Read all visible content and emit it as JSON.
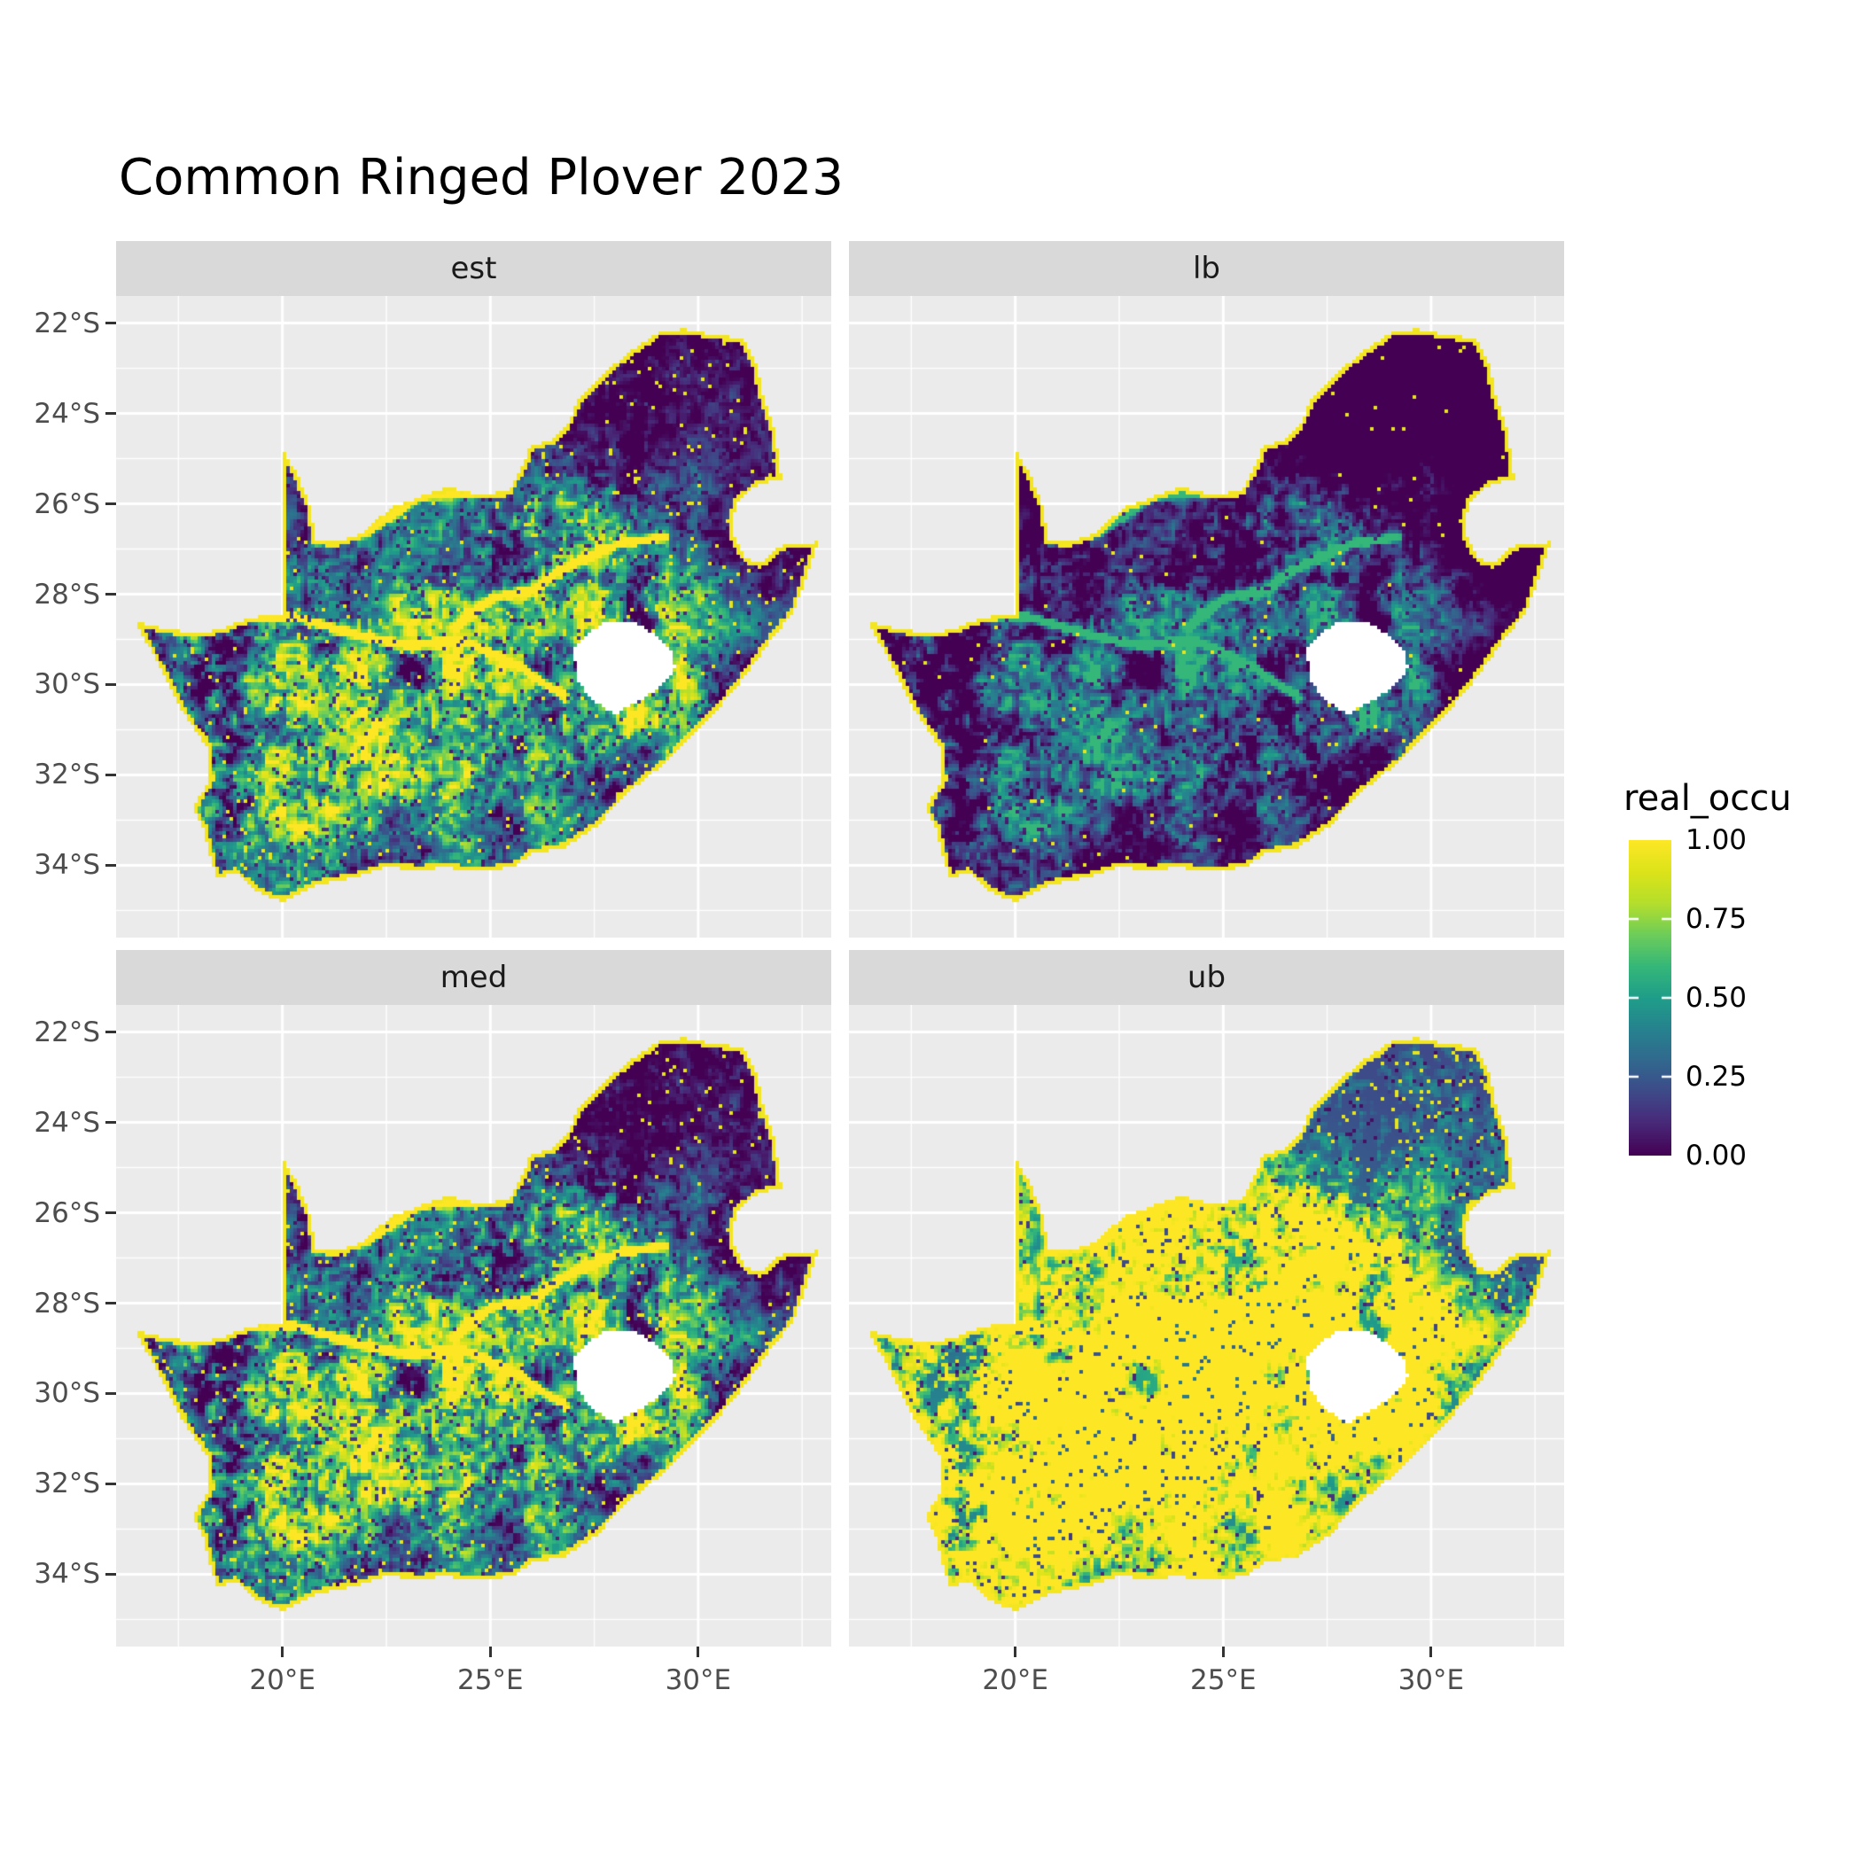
{
  "title": "Common Ringed Plover 2023",
  "facets": [
    {
      "label": "est"
    },
    {
      "label": "lb"
    },
    {
      "label": "med"
    },
    {
      "label": "ub"
    }
  ],
  "x_axis": {
    "ticks": [
      "20°E",
      "25°E",
      "30°E"
    ]
  },
  "y_axis": {
    "ticks": [
      "22°S",
      "24°S",
      "26°S",
      "28°S",
      "30°S",
      "32°S",
      "34°S"
    ]
  },
  "legend": {
    "title": "real_occu",
    "labels": [
      "1.00",
      "0.75",
      "0.50",
      "0.25",
      "0.00"
    ]
  },
  "colors": {
    "panel_background": "#EBEBEB",
    "strip_background": "#D9D9D9",
    "grid": "#FFFFFF",
    "axis_text": "#4D4D4D",
    "tick_mark": "#333333",
    "title_text": "#000000",
    "strip_text": "#1A1A1A",
    "na_fill": "#FFFFFF",
    "viridis": [
      "#440154",
      "#482878",
      "#3E4A89",
      "#31688E",
      "#26828E",
      "#1F9E89",
      "#35B779",
      "#6DCD59",
      "#B4DE2C",
      "#DCE319",
      "#FDE725"
    ]
  },
  "chart_data": {
    "type": "heatmap",
    "subtype": "faceted_raster_map",
    "title": "Common Ringed Plover 2023",
    "variable": "real_occu",
    "facets": [
      "est",
      "lb",
      "med",
      "ub"
    ],
    "colormap": "viridis",
    "value_range": [
      0,
      1
    ],
    "legend_breaks": [
      1.0,
      0.75,
      0.5,
      0.25,
      0.0
    ],
    "x_ticks_deg_east": [
      20,
      25,
      30
    ],
    "y_ticks_deg_south": [
      22,
      24,
      26,
      28,
      30,
      32,
      34
    ],
    "lon_range_east": [
      16.0,
      33.2
    ],
    "lat_range_south": [
      21.4,
      35.6
    ],
    "region": "South Africa pentad raster; Lesotho shown as a no-data hole; coastline rimmed with occupancy ~1",
    "facet_character": {
      "est": "moderate occupancy: bright green/yellow patches in central and western interior, yellow river lines and coastal rim, dark north and east",
      "lb": "lower bound: mostly near-zero (dark purple) with faint teal/green patches, yellow coastal rim",
      "med": "median: similar to est with slightly brighter speckled patches",
      "ub": "upper bound: widespread high occupancy (yellow) across southern and central interior, teal in far north-west, mixed dark/yellow north-east"
    },
    "outline_lonlat": [
      [
        16.45,
        -28.6
      ],
      [
        17.2,
        -28.77
      ],
      [
        18.0,
        -28.87
      ],
      [
        18.6,
        -28.75
      ],
      [
        19.2,
        -28.52
      ],
      [
        19.99,
        -28.43
      ],
      [
        19.99,
        -24.75
      ],
      [
        20.35,
        -25.35
      ],
      [
        20.65,
        -26.0
      ],
      [
        20.82,
        -26.82
      ],
      [
        21.3,
        -26.85
      ],
      [
        21.9,
        -26.67
      ],
      [
        22.6,
        -26.1
      ],
      [
        23.3,
        -25.85
      ],
      [
        24.0,
        -25.63
      ],
      [
        24.75,
        -25.8
      ],
      [
        25.45,
        -25.72
      ],
      [
        25.85,
        -25.0
      ],
      [
        25.95,
        -24.73
      ],
      [
        26.45,
        -24.6
      ],
      [
        26.85,
        -24.25
      ],
      [
        27.15,
        -23.65
      ],
      [
        27.75,
        -23.1
      ],
      [
        28.35,
        -22.65
      ],
      [
        29.05,
        -22.2
      ],
      [
        29.65,
        -22.13
      ],
      [
        30.3,
        -22.25
      ],
      [
        31.1,
        -22.35
      ],
      [
        31.4,
        -22.9
      ],
      [
        31.55,
        -23.6
      ],
      [
        31.85,
        -24.4
      ],
      [
        31.95,
        -25.1
      ],
      [
        32.0,
        -25.44
      ],
      [
        31.4,
        -25.6
      ],
      [
        30.95,
        -25.95
      ],
      [
        30.8,
        -26.4
      ],
      [
        30.9,
        -26.8
      ],
      [
        31.15,
        -27.2
      ],
      [
        31.5,
        -27.32
      ],
      [
        31.97,
        -26.95
      ],
      [
        32.35,
        -26.86
      ],
      [
        32.89,
        -26.85
      ],
      [
        32.6,
        -27.6
      ],
      [
        32.3,
        -28.4
      ],
      [
        31.8,
        -28.95
      ],
      [
        31.05,
        -29.9
      ],
      [
        30.6,
        -30.4
      ],
      [
        29.9,
        -31.1
      ],
      [
        29.2,
        -31.75
      ],
      [
        28.35,
        -32.35
      ],
      [
        27.6,
        -33.1
      ],
      [
        26.8,
        -33.6
      ],
      [
        25.95,
        -33.75
      ],
      [
        25.65,
        -34.0
      ],
      [
        24.8,
        -34.15
      ],
      [
        23.9,
        -34.05
      ],
      [
        23.3,
        -34.1
      ],
      [
        22.5,
        -34.05
      ],
      [
        21.8,
        -34.25
      ],
      [
        20.9,
        -34.42
      ],
      [
        20.0,
        -34.8
      ],
      [
        19.4,
        -34.6
      ],
      [
        19.1,
        -34.35
      ],
      [
        18.85,
        -34.15
      ],
      [
        18.45,
        -34.3
      ],
      [
        18.3,
        -33.95
      ],
      [
        18.1,
        -33.2
      ],
      [
        17.85,
        -32.75
      ],
      [
        18.25,
        -32.1
      ],
      [
        18.2,
        -31.4
      ],
      [
        17.6,
        -30.6
      ],
      [
        17.1,
        -29.7
      ],
      [
        16.75,
        -29.1
      ]
    ],
    "lesotho_hole_lonlat": [
      [
        27.0,
        -29.2
      ],
      [
        27.35,
        -28.9
      ],
      [
        27.75,
        -28.6
      ],
      [
        28.4,
        -28.6
      ],
      [
        29.0,
        -28.9
      ],
      [
        29.35,
        -29.25
      ],
      [
        29.45,
        -29.65
      ],
      [
        29.1,
        -30.05
      ],
      [
        28.5,
        -30.4
      ],
      [
        28.0,
        -30.65
      ],
      [
        27.45,
        -30.35
      ],
      [
        27.1,
        -29.9
      ]
    ],
    "rivers_lonlat": [
      [
        [
          17.4,
          -28.7
        ],
        [
          19.0,
          -28.52
        ],
        [
          20.3,
          -28.5
        ],
        [
          21.8,
          -28.9
        ],
        [
          23.0,
          -29.15
        ],
        [
          24.4,
          -29.05
        ],
        [
          25.7,
          -29.6
        ],
        [
          26.8,
          -30.3
        ]
      ],
      [
        [
          24.2,
          -28.7
        ],
        [
          25.0,
          -28.1
        ],
        [
          26.0,
          -27.9
        ],
        [
          27.0,
          -27.3
        ],
        [
          28.2,
          -26.85
        ],
        [
          29.2,
          -26.75
        ]
      ],
      [
        [
          20.82,
          -26.82
        ],
        [
          22.0,
          -26.65
        ],
        [
          23.3,
          -25.85
        ],
        [
          24.6,
          -25.78
        ]
      ]
    ]
  }
}
